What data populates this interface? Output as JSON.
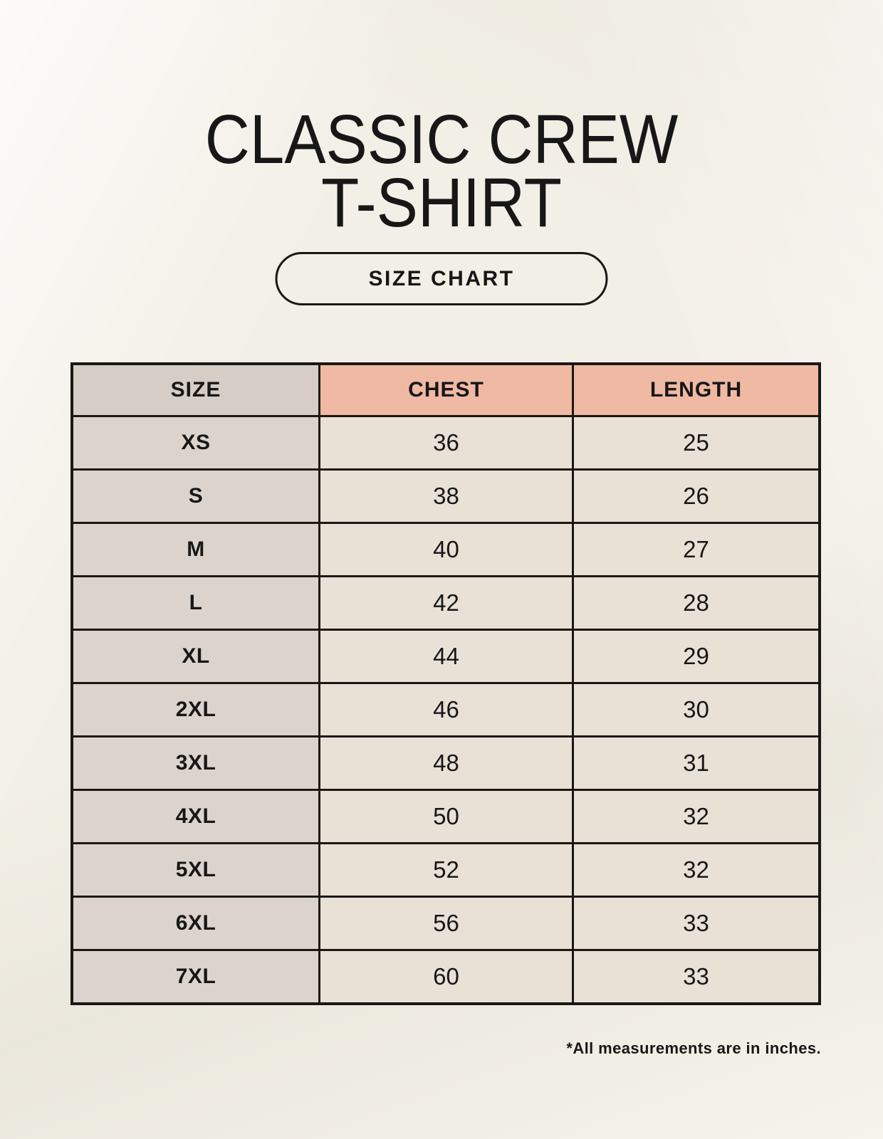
{
  "colors": {
    "page_background": "#f2efe6",
    "header_accent": "#f0b9a4",
    "header_size_cell": "#d5cdc6",
    "size_column": "#dcd4cc",
    "cell_background": "#e9e1d6",
    "table_border": "#1a1815",
    "text": "#171717"
  },
  "header": {
    "title_line1": "CLASSIC CREW",
    "title_line2": "T-SHIRT",
    "size_chart_button_label": "SIZE CHART"
  },
  "table": {
    "columns": [
      "SIZE",
      "CHEST",
      "LENGTH"
    ],
    "rows": [
      {
        "size": "XS",
        "chest": "36",
        "length": "25"
      },
      {
        "size": "S",
        "chest": "38",
        "length": "26"
      },
      {
        "size": "M",
        "chest": "40",
        "length": "27"
      },
      {
        "size": "L",
        "chest": "42",
        "length": "28"
      },
      {
        "size": "XL",
        "chest": "44",
        "length": "29"
      },
      {
        "size": "2XL",
        "chest": "46",
        "length": "30"
      },
      {
        "size": "3XL",
        "chest": "48",
        "length": "31"
      },
      {
        "size": "4XL",
        "chest": "50",
        "length": "32"
      },
      {
        "size": "5XL",
        "chest": "52",
        "length": "32"
      },
      {
        "size": "6XL",
        "chest": "56",
        "length": "33"
      },
      {
        "size": "7XL",
        "chest": "60",
        "length": "33"
      }
    ],
    "footnote": "*All measurements are in inches."
  },
  "chart_data": {
    "type": "table",
    "title": "CLASSIC CREW T-SHIRT",
    "subtitle": "SIZE CHART",
    "columns": [
      "SIZE",
      "CHEST",
      "LENGTH"
    ],
    "rows": [
      [
        "XS",
        36,
        25
      ],
      [
        "S",
        38,
        26
      ],
      [
        "M",
        40,
        27
      ],
      [
        "L",
        42,
        28
      ],
      [
        "XL",
        44,
        29
      ],
      [
        "2XL",
        46,
        30
      ],
      [
        "3XL",
        48,
        31
      ],
      [
        "4XL",
        50,
        32
      ],
      [
        "5XL",
        52,
        32
      ],
      [
        "6XL",
        56,
        33
      ],
      [
        "7XL",
        60,
        33
      ]
    ],
    "note": "*All measurements are in inches."
  }
}
